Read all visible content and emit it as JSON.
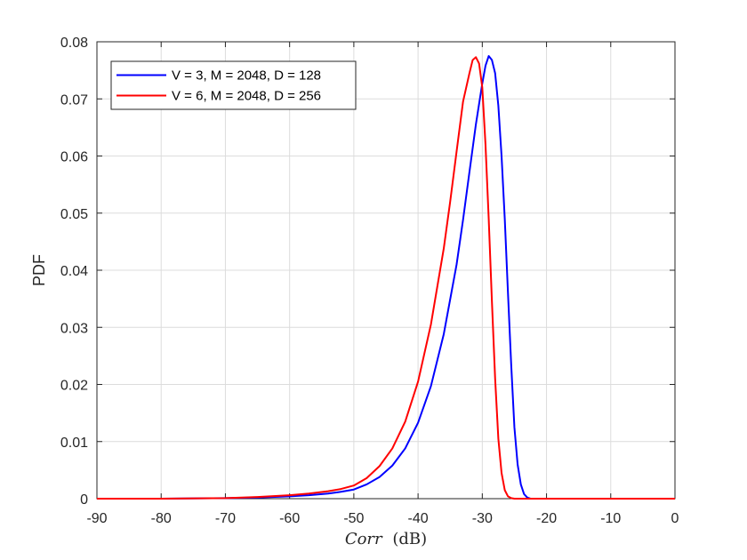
{
  "chart_data": {
    "type": "line",
    "title": "",
    "xlabel_italic": "Corr",
    "xlabel_unit": "(dB)",
    "ylabel": "PDF",
    "xlim": [
      -90,
      0
    ],
    "ylim": [
      0,
      0.08
    ],
    "xticks": [
      -90,
      -80,
      -70,
      -60,
      -50,
      -40,
      -30,
      -20,
      -10,
      0
    ],
    "yticks": [
      0,
      0.01,
      0.02,
      0.03,
      0.04,
      0.05,
      0.06,
      0.07,
      0.08
    ],
    "xtick_labels": [
      "-90",
      "-80",
      "-70",
      "-60",
      "-50",
      "-40",
      "-30",
      "-20",
      "-10",
      "0"
    ],
    "ytick_labels": [
      "0",
      "0.01",
      "0.02",
      "0.03",
      "0.04",
      "0.05",
      "0.06",
      "0.07",
      "0.08"
    ],
    "grid": true,
    "legend_position": "top-left",
    "series": [
      {
        "name": "V = 3, M = 2048, D = 128",
        "color": "#0000ff",
        "x": [
          -90,
          -80,
          -70,
          -65,
          -60,
          -57,
          -54,
          -52,
          -50,
          -48,
          -46,
          -44,
          -42,
          -40,
          -38,
          -36,
          -34,
          -33,
          -32,
          -31,
          -30,
          -29.5,
          -29,
          -28.5,
          -28,
          -27.5,
          -27,
          -26.5,
          -26,
          -25.5,
          -25,
          -24.5,
          -24,
          -23.5,
          -23,
          -22.5,
          -22,
          -21.5,
          -21,
          -20,
          -10,
          0
        ],
        "y": [
          0,
          0,
          0.0001,
          0.0002,
          0.0004,
          0.0006,
          0.0009,
          0.0012,
          0.0016,
          0.0025,
          0.0038,
          0.0058,
          0.0088,
          0.0133,
          0.0197,
          0.0288,
          0.041,
          0.0488,
          0.0572,
          0.0655,
          0.0727,
          0.0758,
          0.0775,
          0.0768,
          0.0745,
          0.0688,
          0.06,
          0.049,
          0.036,
          0.0235,
          0.0125,
          0.006,
          0.0025,
          0.0008,
          0.0002,
          0,
          0,
          0,
          0,
          0,
          0,
          0
        ]
      },
      {
        "name": "V = 6, M = 2048, D = 256",
        "color": "#ff0000",
        "x": [
          -90,
          -80,
          -70,
          -65,
          -60,
          -57,
          -54,
          -52,
          -50,
          -48,
          -46,
          -44,
          -42,
          -40,
          -38,
          -36,
          -35,
          -34,
          -33,
          -32,
          -31.5,
          -31,
          -30.5,
          -30,
          -29.5,
          -29,
          -28.5,
          -28,
          -27.5,
          -27,
          -26.5,
          -26,
          -25.5,
          -25,
          -24.5,
          -24,
          -23,
          -22,
          -21,
          -20,
          -10,
          0
        ],
        "y": [
          0,
          0,
          0.0001,
          0.0003,
          0.0006,
          0.0009,
          0.0013,
          0.0017,
          0.0023,
          0.0036,
          0.0057,
          0.0088,
          0.0135,
          0.0205,
          0.0305,
          0.0438,
          0.052,
          0.0608,
          0.0695,
          0.0745,
          0.0768,
          0.0773,
          0.0762,
          0.072,
          0.062,
          0.049,
          0.0345,
          0.021,
          0.0105,
          0.0045,
          0.0015,
          0.0004,
          0.0001,
          0,
          0,
          0,
          0,
          0,
          0,
          0,
          0,
          0
        ]
      }
    ]
  }
}
